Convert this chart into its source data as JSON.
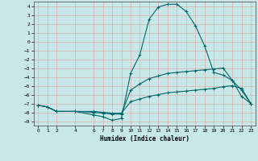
{
  "title": "",
  "xlabel": "Humidex (Indice chaleur)",
  "bg_color": "#c8e8e8",
  "grid_color": "#d8b8b8",
  "line_color": "#006868",
  "xlim": [
    -0.5,
    23.5
  ],
  "ylim": [
    -9.5,
    4.5
  ],
  "xticks": [
    0,
    1,
    2,
    4,
    6,
    7,
    8,
    9,
    10,
    11,
    12,
    13,
    14,
    15,
    16,
    17,
    18,
    19,
    20,
    21,
    22,
    23
  ],
  "yticks": [
    4,
    3,
    2,
    1,
    0,
    -1,
    -2,
    -3,
    -4,
    -5,
    -6,
    -7,
    -8,
    -9
  ],
  "line1_x": [
    0,
    1,
    2,
    4,
    6,
    7,
    8,
    9,
    10,
    11,
    12,
    13,
    14,
    15,
    16,
    17,
    18,
    19,
    20,
    21,
    22,
    23
  ],
  "line1_y": [
    -7.2,
    -7.4,
    -7.9,
    -7.9,
    -8.3,
    -8.5,
    -8.9,
    -8.7,
    -3.6,
    -1.5,
    2.5,
    3.9,
    4.2,
    4.2,
    3.4,
    1.8,
    -0.5,
    -3.5,
    -3.8,
    -4.4,
    -6.2,
    -7.0
  ],
  "line2_x": [
    0,
    1,
    2,
    4,
    6,
    7,
    8,
    9,
    10,
    11,
    12,
    13,
    14,
    15,
    16,
    17,
    18,
    19,
    20,
    21,
    22,
    23
  ],
  "line2_y": [
    -7.2,
    -7.4,
    -7.9,
    -7.9,
    -8.0,
    -8.1,
    -8.2,
    -8.2,
    -5.5,
    -4.8,
    -4.2,
    -3.9,
    -3.6,
    -3.5,
    -3.4,
    -3.3,
    -3.2,
    -3.1,
    -3.0,
    -4.4,
    -5.5,
    -7.0
  ],
  "line3_x": [
    0,
    1,
    2,
    4,
    6,
    7,
    8,
    9,
    10,
    11,
    12,
    13,
    14,
    15,
    16,
    17,
    18,
    19,
    20,
    21,
    22,
    23
  ],
  "line3_y": [
    -7.2,
    -7.4,
    -7.9,
    -7.9,
    -7.9,
    -8.0,
    -8.1,
    -8.1,
    -6.8,
    -6.5,
    -6.2,
    -6.0,
    -5.8,
    -5.7,
    -5.6,
    -5.5,
    -5.4,
    -5.3,
    -5.1,
    -5.0,
    -5.3,
    -7.0
  ]
}
